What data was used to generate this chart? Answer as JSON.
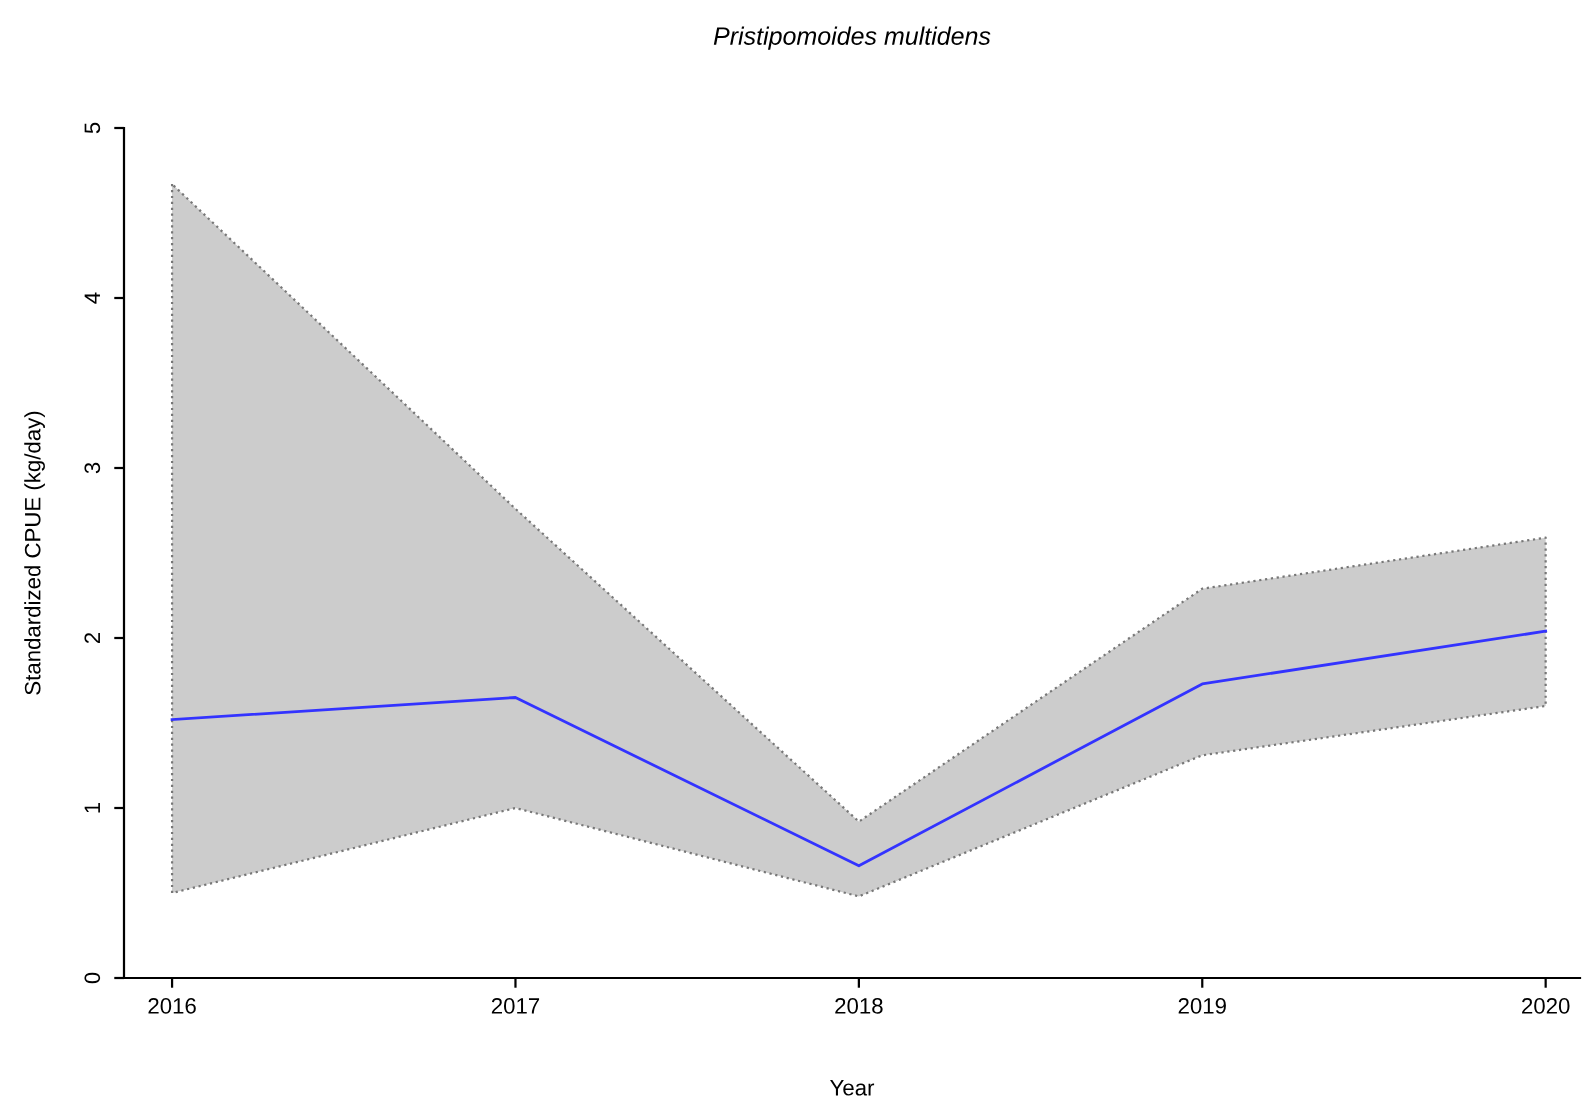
{
  "chart_data": {
    "type": "line",
    "title": "Pristipomoides multidens",
    "xlabel": "Year",
    "ylabel": "Standardized CPUE (kg/day)",
    "x": [
      2016,
      2017,
      2018,
      2019,
      2020
    ],
    "series": [
      {
        "color": "#3333ff",
        "values": [
          1.52,
          1.65,
          0.66,
          1.73,
          2.04
        ],
        "lower": [
          0.5,
          1.0,
          0.48,
          1.31,
          1.6
        ],
        "upper": [
          4.67,
          2.76,
          0.92,
          2.29,
          2.59
        ]
      }
    ],
    "xlim": [
      2015.86,
      2020.1
    ],
    "ylim": [
      0,
      5
    ],
    "xticks": [
      2016,
      2017,
      2018,
      2019,
      2020
    ],
    "yticks": [
      0,
      1,
      2,
      3,
      4,
      5
    ],
    "grid": false,
    "legend": false
  }
}
